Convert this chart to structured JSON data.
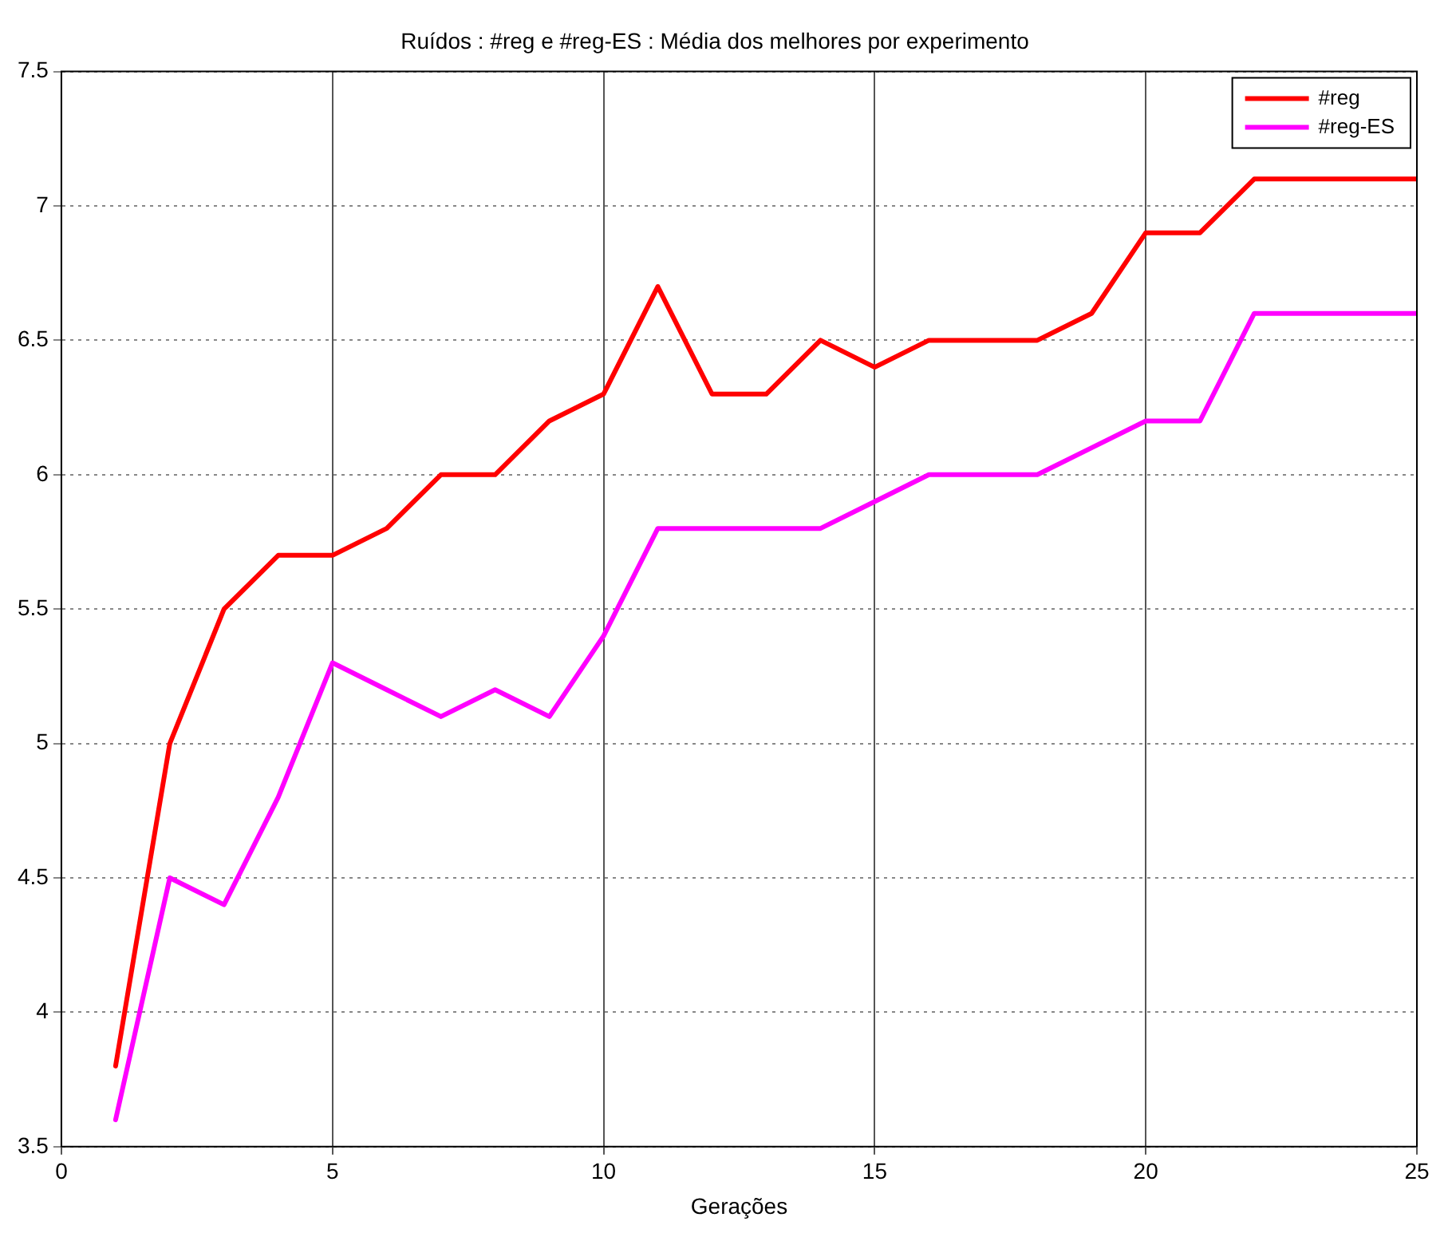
{
  "chart_data": {
    "type": "line",
    "title": "Ruídos : #reg e #reg-ES : Média dos melhores por experimento",
    "xlabel": "Gerações",
    "x": [
      1,
      2,
      3,
      4,
      5,
      6,
      7,
      8,
      9,
      10,
      11,
      12,
      13,
      14,
      15,
      16,
      17,
      18,
      19,
      20,
      21,
      22,
      23,
      24,
      25
    ],
    "series": [
      {
        "name": "#reg",
        "color": "#ff0000",
        "values": [
          3.8,
          5.0,
          5.5,
          5.7,
          5.7,
          5.8,
          6.0,
          6.0,
          6.2,
          6.3,
          6.7,
          6.3,
          6.3,
          6.5,
          6.4,
          6.5,
          6.5,
          6.5,
          6.6,
          6.9,
          6.9,
          7.1,
          7.1,
          7.1,
          7.1
        ]
      },
      {
        "name": "#reg-ES",
        "color": "#ff00ff",
        "values": [
          3.6,
          4.5,
          4.4,
          4.8,
          5.3,
          5.2,
          5.1,
          5.2,
          5.1,
          5.4,
          5.8,
          5.8,
          5.8,
          5.8,
          5.9,
          6.0,
          6.0,
          6.0,
          6.1,
          6.2,
          6.2,
          6.6,
          6.6,
          6.6,
          6.6
        ]
      }
    ],
    "xlim": [
      0,
      25
    ],
    "xticks": [
      0,
      5,
      10,
      15,
      20,
      25
    ],
    "ylim": [
      3.5,
      7.5
    ],
    "yticks": [
      3.5,
      4,
      4.5,
      5,
      5.5,
      6,
      6.5,
      7,
      7.5
    ],
    "grid": true,
    "legend": "top right",
    "marker": "none",
    "line_style": "solid"
  }
}
